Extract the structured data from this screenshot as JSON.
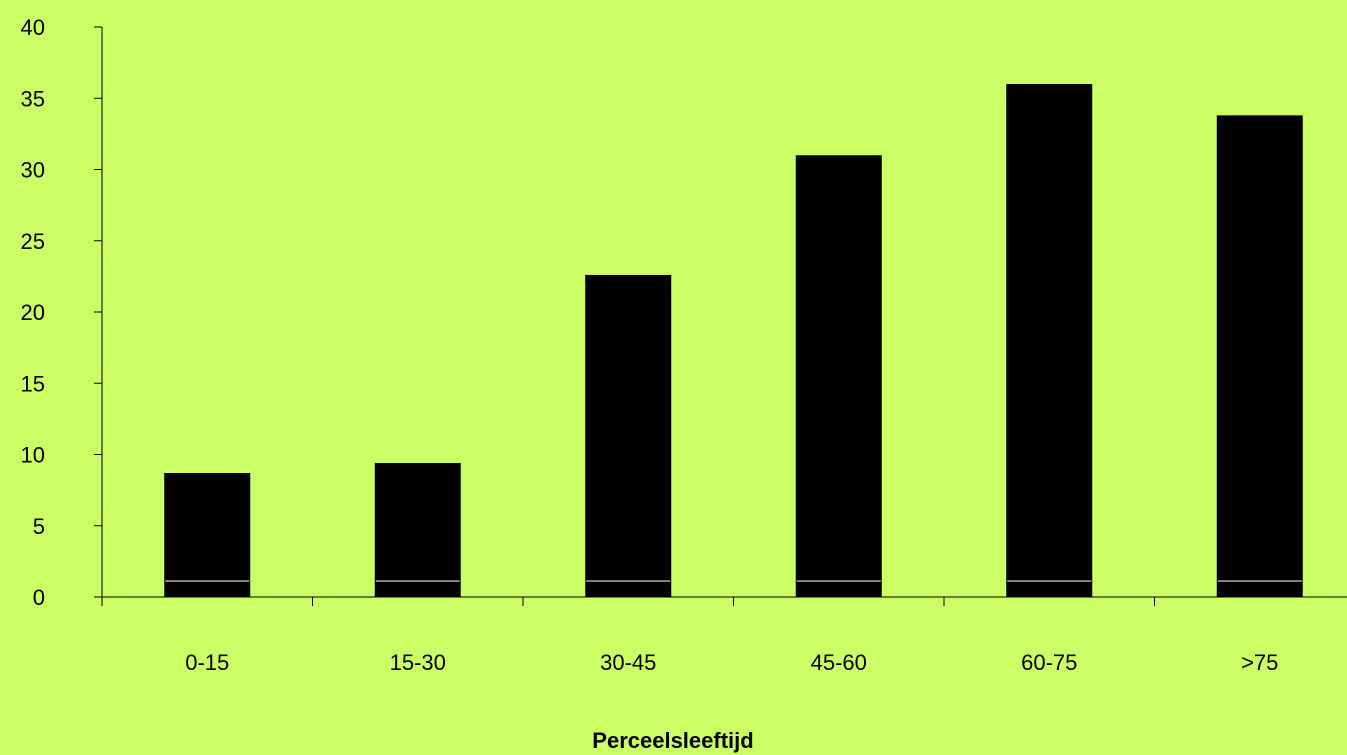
{
  "colors": {
    "background": "#CCFF66",
    "bar": "#000000",
    "bar_band": "#FFFFFF",
    "axis": "#000000"
  },
  "chart_data": {
    "type": "bar",
    "categories": [
      "0-15",
      "15-30",
      "30-45",
      "45-60",
      "60-75",
      ">75"
    ],
    "values": [
      8.7,
      9.4,
      22.6,
      31.0,
      36.0,
      33.8
    ],
    "xlabel": "Perceelsleeftijd",
    "ylabel": "",
    "ylim": [
      0,
      40
    ],
    "yticks": [
      0,
      5,
      10,
      15,
      20,
      25,
      30,
      35,
      40
    ],
    "grid": false,
    "legend": "none"
  }
}
